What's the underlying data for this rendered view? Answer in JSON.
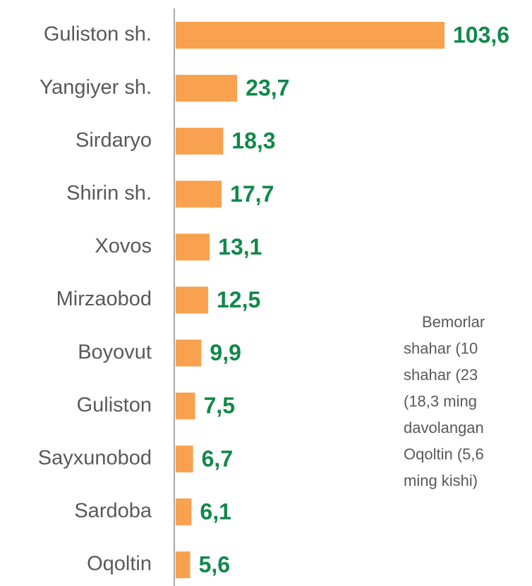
{
  "chart_data": {
    "type": "bar",
    "orientation": "horizontal",
    "categories": [
      "Guliston sh.",
      "Yangiyer sh.",
      "Sirdaryo",
      "Shirin sh.",
      "Xovos",
      "Mirzaobod",
      "Boyovut",
      "Guliston",
      "Sayxunobod",
      "Sardoba",
      "Oqoltin"
    ],
    "values": [
      103.6,
      23.7,
      18.3,
      17.7,
      13.1,
      12.5,
      9.9,
      7.5,
      6.7,
      6.1,
      5.6
    ],
    "value_labels": [
      "103,6",
      "23,7",
      "18,3",
      "17,7",
      "13,1",
      "12,5",
      "9,9",
      "7,5",
      "6,7",
      "6,1",
      "5,6"
    ],
    "color": "#f8a14f",
    "annotation_lines": [
      "Bemorlar",
      "shahar (10",
      "shahar (23",
      "(18,3 ming",
      "davolangan",
      "Oqoltin (5,6",
      "ming kishi)"
    ]
  }
}
